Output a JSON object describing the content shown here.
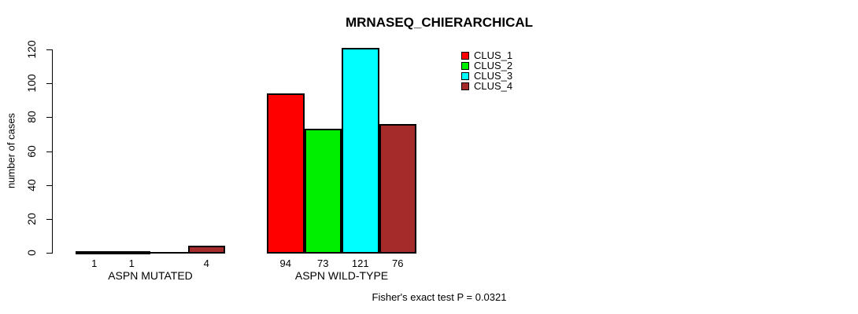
{
  "chart_data": {
    "type": "bar",
    "title": "MRNASEQ_CHIERARCHICAL",
    "ylabel": "number of cases",
    "xlabel": "",
    "footer": "Fisher's exact test P = 0.0321",
    "yticks": [
      0,
      20,
      40,
      60,
      80,
      100,
      120
    ],
    "ylim": [
      0,
      121
    ],
    "grid": false,
    "legend_position": "top-right",
    "categories": [
      "ASPN MUTATED",
      "ASPN WILD-TYPE"
    ],
    "series": [
      {
        "name": "CLUS_1",
        "color": "#FF0000",
        "values": [
          1,
          94
        ],
        "value_labels": [
          "1",
          "94"
        ]
      },
      {
        "name": "CLUS_2",
        "color": "#00EE00",
        "values": [
          1,
          73
        ],
        "value_labels": [
          "1",
          "73"
        ]
      },
      {
        "name": "CLUS_3",
        "color": "#00FFFF",
        "values": [
          0,
          121
        ],
        "value_labels": [
          "",
          "121"
        ]
      },
      {
        "name": "CLUS_4",
        "color": "#A52A2A",
        "values": [
          4,
          76
        ],
        "value_labels": [
          "4",
          "76"
        ]
      }
    ]
  }
}
